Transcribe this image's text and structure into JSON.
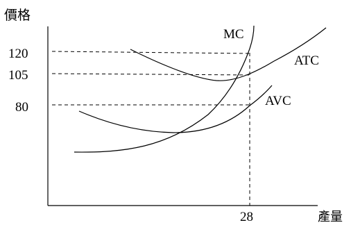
{
  "chart_data": {
    "type": "line",
    "title": "",
    "ylabel": "價格",
    "xlabel": "產量",
    "y_ticks": [
      "120",
      "105",
      "80"
    ],
    "x_ticks": [
      "28"
    ],
    "series": [
      {
        "name": "MC"
      },
      {
        "name": "ATC"
      },
      {
        "name": "AVC"
      }
    ],
    "guides": {
      "quantity": 28,
      "prices": [
        120,
        105,
        80
      ]
    }
  }
}
